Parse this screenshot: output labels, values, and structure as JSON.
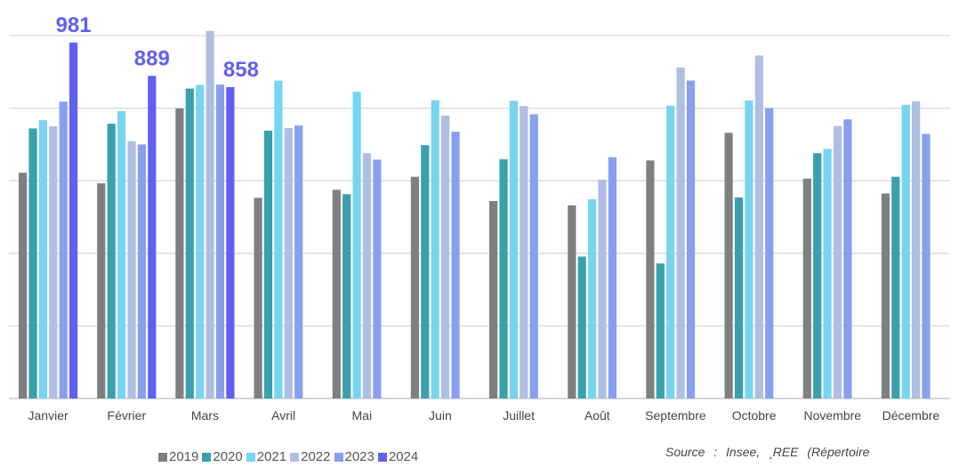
{
  "chart_data": {
    "type": "bar",
    "categories": [
      "Janvier",
      "Février",
      "Mars",
      "Avril",
      "Mai",
      "Juin",
      "Juillet",
      "Août",
      "Septembre",
      "Octobre",
      "Novembre",
      "Décembre"
    ],
    "ylim": [
      0,
      1000
    ],
    "grid": true,
    "legend_position": "bottom-left",
    "series": [
      {
        "name": "2019",
        "color": "#7f7f7f",
        "values": [
          622,
          593,
          799,
          553,
          575,
          611,
          544,
          532,
          656,
          732,
          606,
          565
        ]
      },
      {
        "name": "2020",
        "color": "#3aa0ad",
        "values": [
          744,
          757,
          854,
          738,
          563,
          698,
          659,
          391,
          372,
          554,
          676,
          611
        ]
      },
      {
        "name": "2021",
        "color": "#77d5ef",
        "values": [
          767,
          792,
          864,
          876,
          845,
          822,
          820,
          549,
          807,
          821,
          688,
          809
        ]
      },
      {
        "name": "2022",
        "color": "#b0bee3",
        "values": [
          750,
          709,
          1013,
          745,
          676,
          780,
          806,
          603,
          912,
          945,
          751,
          819
        ]
      },
      {
        "name": "2023",
        "color": "#889ff0",
        "values": [
          818,
          700,
          865,
          752,
          658,
          735,
          783,
          665,
          876,
          800,
          769,
          729
        ]
      },
      {
        "name": "2024",
        "color": "#6060f0",
        "values": [
          981,
          889,
          858,
          null,
          null,
          null,
          null,
          null,
          null,
          null,
          null,
          null
        ]
      }
    ],
    "annotations": [
      {
        "text": "981",
        "category": "Janvier",
        "value": 981
      },
      {
        "text": "889",
        "category": "Février",
        "value": 889
      },
      {
        "text": "858",
        "category": "Mars",
        "value": 858
      }
    ],
    "annotation_color": "#6060f0",
    "source_text": "Source : Insee, ¸REE (Répertoire"
  }
}
